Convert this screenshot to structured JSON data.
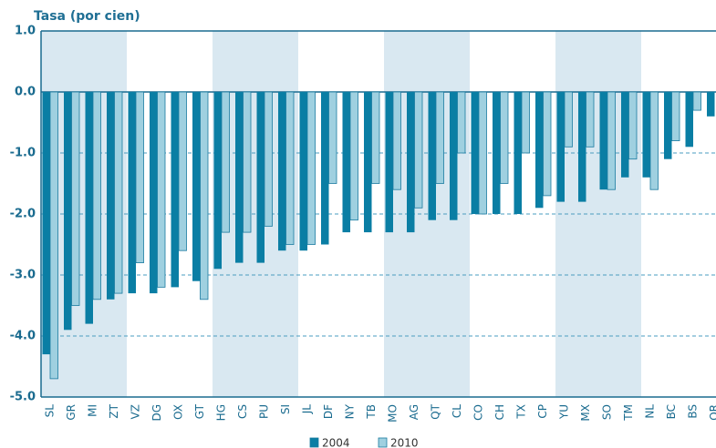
{
  "chart_data": {
    "type": "bar",
    "title": "Tasa (por cien)",
    "categories": [
      "SL",
      "GR",
      "MI",
      "ZT",
      "VZ",
      "DG",
      "OX",
      "GT",
      "HG",
      "CS",
      "PU",
      "SI",
      "JL",
      "DF",
      "NY",
      "TB",
      "MO",
      "AG",
      "QT",
      "CL",
      "CO",
      "CH",
      "TX",
      "CP",
      "YU",
      "MX",
      "SO",
      "TM",
      "NL",
      "BC",
      "BS",
      "QR"
    ],
    "series": [
      {
        "name": "2004",
        "color": "#0a7ea4",
        "values": [
          -4.3,
          -3.9,
          -3.8,
          -3.4,
          -3.3,
          -3.3,
          -3.2,
          -3.1,
          -2.9,
          -2.8,
          -2.8,
          -2.6,
          -2.6,
          -2.5,
          -2.3,
          -2.3,
          -2.3,
          -2.3,
          -2.1,
          -2.1,
          -2.0,
          -2.0,
          -2.0,
          -1.9,
          -1.8,
          -1.8,
          -1.6,
          -1.4,
          -1.4,
          -1.1,
          -0.9,
          -0.4
        ]
      },
      {
        "name": "2010",
        "color": "#9fd0e0",
        "values": [
          -4.7,
          -3.5,
          -3.4,
          -3.3,
          -2.8,
          -3.2,
          -2.6,
          -3.4,
          -2.3,
          -2.3,
          -2.2,
          -2.5,
          -2.5,
          -1.5,
          -2.1,
          -1.5,
          -1.6,
          -1.9,
          -1.5,
          -1.0,
          -2.0,
          -1.5,
          -1.0,
          -1.7,
          -0.9,
          -0.9,
          -1.6,
          -1.1,
          -1.6,
          -0.8,
          -0.3,
          null
        ]
      }
    ],
    "ylim": [
      -5,
      1
    ],
    "yticks": [
      {
        "value": 1,
        "label": "1.0"
      },
      {
        "value": 0,
        "label": "0.0"
      },
      {
        "value": -1,
        "label": "-1.0"
      },
      {
        "value": -2,
        "label": "-2.0"
      },
      {
        "value": -3,
        "label": "-3.0"
      },
      {
        "value": -4,
        "label": "-4.0"
      },
      {
        "value": -5,
        "label": "-5.0"
      }
    ],
    "grid": true
  }
}
